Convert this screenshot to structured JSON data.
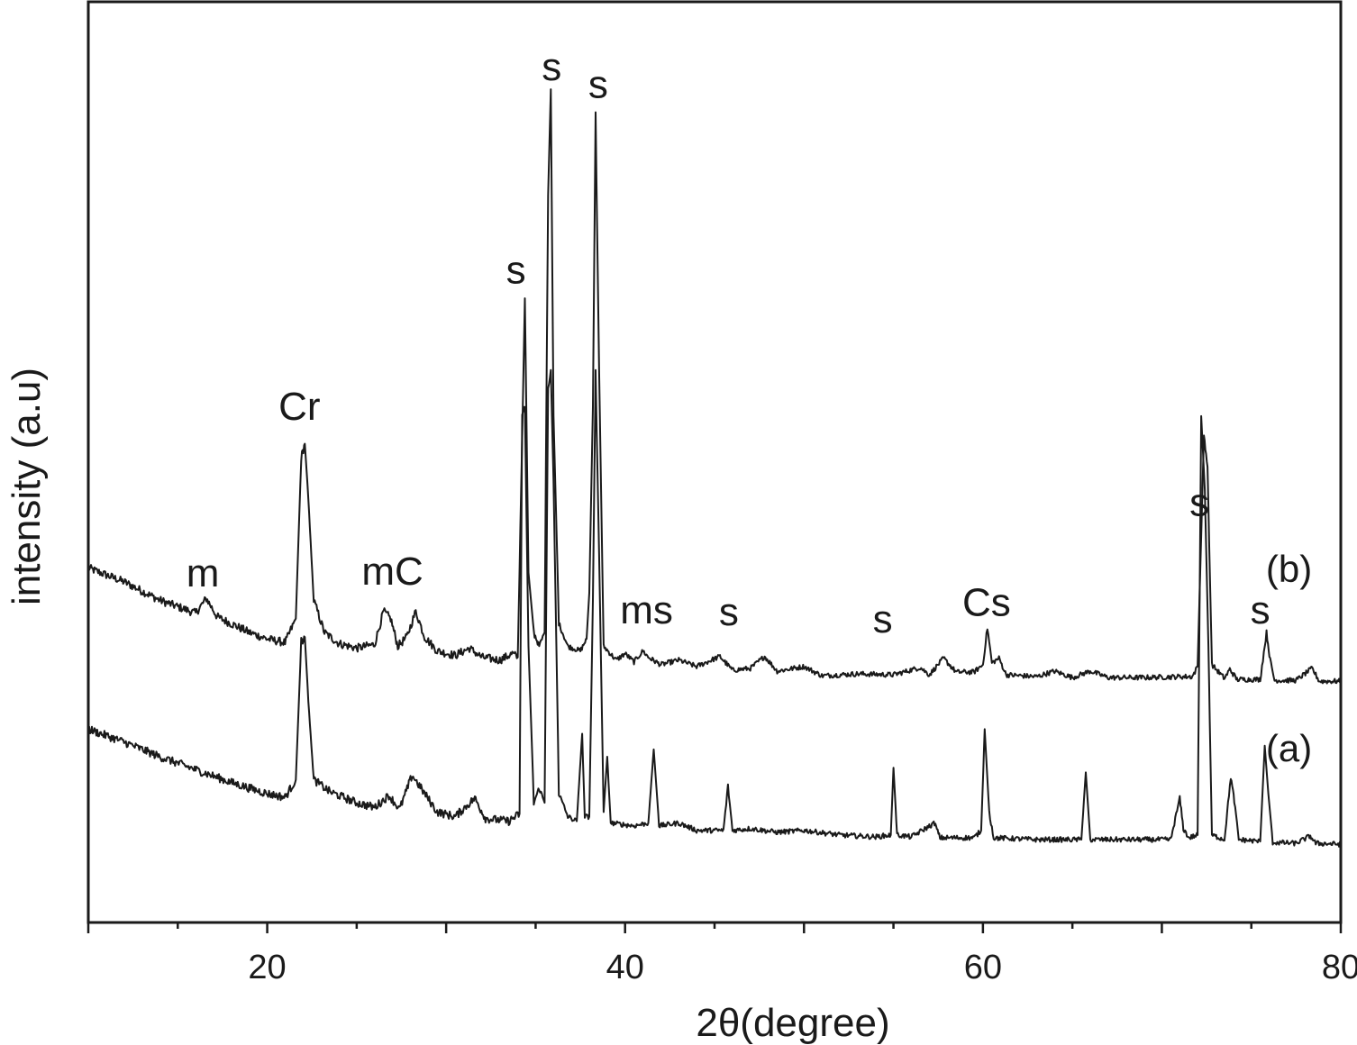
{
  "chart_data": {
    "type": "line",
    "title": "",
    "xlabel": "2θ(degree)",
    "ylabel": "intensity (a.u)",
    "xlim": [
      10,
      80
    ],
    "ylim": [
      0,
      100
    ],
    "x_ticks": [
      20,
      40,
      60,
      80
    ],
    "y_ticks_shown": false,
    "grid": false,
    "legend": "none",
    "line_color": "#1a1a1a",
    "series": [
      {
        "name": "(b)",
        "label_pos": [
          78.4,
          37
        ],
        "points": [
          [
            10.0,
            38.5
          ],
          [
            12.0,
            37.0
          ],
          [
            14.0,
            35.0
          ],
          [
            16.0,
            33.6
          ],
          [
            16.6,
            35.2
          ],
          [
            17.2,
            33.2
          ],
          [
            19.0,
            31.5
          ],
          [
            20.0,
            30.8
          ],
          [
            21.0,
            30.4
          ],
          [
            21.6,
            33.0
          ],
          [
            21.9,
            50.5
          ],
          [
            22.1,
            52.0
          ],
          [
            22.3,
            46.0
          ],
          [
            22.6,
            35.0
          ],
          [
            23.2,
            31.5
          ],
          [
            24.0,
            30.3
          ],
          [
            25.0,
            29.8
          ],
          [
            26.0,
            30.2
          ],
          [
            26.5,
            33.8
          ],
          [
            26.9,
            33.0
          ],
          [
            27.3,
            30.0
          ],
          [
            27.8,
            31.0
          ],
          [
            28.3,
            33.8
          ],
          [
            28.8,
            31.0
          ],
          [
            29.5,
            29.5
          ],
          [
            30.5,
            29.0
          ],
          [
            31.3,
            29.8
          ],
          [
            32.0,
            28.8
          ],
          [
            33.0,
            28.5
          ],
          [
            33.7,
            29.2
          ],
          [
            34.0,
            28.8
          ],
          [
            34.25,
            52.5
          ],
          [
            34.4,
            67.8
          ],
          [
            34.6,
            38.0
          ],
          [
            34.9,
            31.5
          ],
          [
            35.2,
            30.0
          ],
          [
            35.5,
            31.5
          ],
          [
            35.7,
            79.0
          ],
          [
            35.85,
            90.5
          ],
          [
            36.0,
            55.0
          ],
          [
            36.3,
            32.5
          ],
          [
            36.8,
            30.0
          ],
          [
            37.5,
            29.5
          ],
          [
            37.85,
            30.8
          ],
          [
            38.0,
            35.8
          ],
          [
            38.2,
            56.0
          ],
          [
            38.35,
            88.0
          ],
          [
            38.55,
            60.0
          ],
          [
            38.8,
            30.0
          ],
          [
            39.5,
            28.5
          ],
          [
            40.0,
            29.2
          ],
          [
            40.5,
            28.3
          ],
          [
            41.0,
            29.5
          ],
          [
            41.3,
            28.8
          ],
          [
            42.0,
            28.0
          ],
          [
            43.0,
            28.5
          ],
          [
            44.0,
            27.8
          ],
          [
            45.3,
            28.9
          ],
          [
            46.0,
            27.4
          ],
          [
            47.0,
            27.6
          ],
          [
            47.8,
            28.9
          ],
          [
            48.5,
            27.3
          ],
          [
            50.0,
            27.8
          ],
          [
            51.0,
            26.8
          ],
          [
            53.0,
            27.0
          ],
          [
            55.0,
            26.9
          ],
          [
            56.5,
            27.7
          ],
          [
            57.0,
            26.9
          ],
          [
            57.8,
            28.7
          ],
          [
            58.5,
            27.2
          ],
          [
            59.5,
            27.2
          ],
          [
            60.0,
            28.0
          ],
          [
            60.25,
            32.0
          ],
          [
            60.5,
            28.2
          ],
          [
            60.9,
            28.7
          ],
          [
            61.3,
            26.9
          ],
          [
            63.0,
            26.7
          ],
          [
            64.0,
            27.3
          ],
          [
            65.0,
            26.6
          ],
          [
            66.0,
            27.3
          ],
          [
            67.0,
            26.6
          ],
          [
            69.0,
            26.6
          ],
          [
            71.0,
            26.7
          ],
          [
            71.7,
            26.7
          ],
          [
            72.0,
            27.8
          ],
          [
            72.2,
            42.0
          ],
          [
            72.35,
            53.0
          ],
          [
            72.55,
            49.5
          ],
          [
            72.8,
            28.0
          ],
          [
            73.5,
            26.5
          ],
          [
            73.8,
            27.5
          ],
          [
            74.2,
            26.4
          ],
          [
            75.5,
            26.4
          ],
          [
            75.85,
            31.5
          ],
          [
            76.05,
            28.5
          ],
          [
            76.3,
            26.3
          ],
          [
            77.5,
            26.3
          ],
          [
            78.4,
            27.6
          ],
          [
            78.8,
            26.2
          ],
          [
            80.0,
            26.2
          ]
        ]
      },
      {
        "name": "(a)",
        "label_pos": [
          78.4,
          17.5
        ],
        "points": [
          [
            10.0,
            21.0
          ],
          [
            12.0,
            19.6
          ],
          [
            14.0,
            18.0
          ],
          [
            16.0,
            16.6
          ],
          [
            18.0,
            15.2
          ],
          [
            20.0,
            14.0
          ],
          [
            21.0,
            13.6
          ],
          [
            21.6,
            15.5
          ],
          [
            21.9,
            30.5
          ],
          [
            22.1,
            31.0
          ],
          [
            22.3,
            24.0
          ],
          [
            22.6,
            15.5
          ],
          [
            23.5,
            14.2
          ],
          [
            25.0,
            13.0
          ],
          [
            26.0,
            12.5
          ],
          [
            26.8,
            13.8
          ],
          [
            27.4,
            12.3
          ],
          [
            28.1,
            16.0
          ],
          [
            28.8,
            14.0
          ],
          [
            29.5,
            12.0
          ],
          [
            30.5,
            11.5
          ],
          [
            31.6,
            13.5
          ],
          [
            32.2,
            11.3
          ],
          [
            33.5,
            11.0
          ],
          [
            34.1,
            11.8
          ],
          [
            34.25,
            55.0
          ],
          [
            34.4,
            56.0
          ],
          [
            34.6,
            30.0
          ],
          [
            34.9,
            13.0
          ],
          [
            35.2,
            14.6
          ],
          [
            35.5,
            13.0
          ],
          [
            35.7,
            58.0
          ],
          [
            35.85,
            60.0
          ],
          [
            36.0,
            48.0
          ],
          [
            36.3,
            14.0
          ],
          [
            36.8,
            11.5
          ],
          [
            37.3,
            11.0
          ],
          [
            37.6,
            20.5
          ],
          [
            37.75,
            11.5
          ],
          [
            38.0,
            11.5
          ],
          [
            38.2,
            35.0
          ],
          [
            38.35,
            60.0
          ],
          [
            38.55,
            40.0
          ],
          [
            38.8,
            12.0
          ],
          [
            39.0,
            18.0
          ],
          [
            39.2,
            10.8
          ],
          [
            40.5,
            10.5
          ],
          [
            41.3,
            10.8
          ],
          [
            41.6,
            18.8
          ],
          [
            41.9,
            10.5
          ],
          [
            43.0,
            10.8
          ],
          [
            44.0,
            10.0
          ],
          [
            45.5,
            10.0
          ],
          [
            45.75,
            14.8
          ],
          [
            46.0,
            10.0
          ],
          [
            47.0,
            10.2
          ],
          [
            48.5,
            9.8
          ],
          [
            50.0,
            10.0
          ],
          [
            52.0,
            9.5
          ],
          [
            54.0,
            9.3
          ],
          [
            54.85,
            9.5
          ],
          [
            55.0,
            16.8
          ],
          [
            55.2,
            9.5
          ],
          [
            56.0,
            9.3
          ],
          [
            57.3,
            10.8
          ],
          [
            57.6,
            9.2
          ],
          [
            59.5,
            9.2
          ],
          [
            59.9,
            10.0
          ],
          [
            60.1,
            21.0
          ],
          [
            60.35,
            12.0
          ],
          [
            60.6,
            9.2
          ],
          [
            63.0,
            9.0
          ],
          [
            65.5,
            9.0
          ],
          [
            65.75,
            16.3
          ],
          [
            66.0,
            9.0
          ],
          [
            68.0,
            9.0
          ],
          [
            70.5,
            9.0
          ],
          [
            71.0,
            13.5
          ],
          [
            71.2,
            10.2
          ],
          [
            71.5,
            9.2
          ],
          [
            72.0,
            9.5
          ],
          [
            72.2,
            55.0
          ],
          [
            72.4,
            47.0
          ],
          [
            72.6,
            30.0
          ],
          [
            72.8,
            9.5
          ],
          [
            73.5,
            9.0
          ],
          [
            73.85,
            15.8
          ],
          [
            74.05,
            13.2
          ],
          [
            74.3,
            9.0
          ],
          [
            75.5,
            8.8
          ],
          [
            75.75,
            19.2
          ],
          [
            75.95,
            14.0
          ],
          [
            76.2,
            8.7
          ],
          [
            77.5,
            8.6
          ],
          [
            78.3,
            9.4
          ],
          [
            78.6,
            8.6
          ],
          [
            80.0,
            8.5
          ]
        ]
      }
    ],
    "annotations": [
      {
        "text": "m",
        "x": 16.4,
        "y": 36.5
      },
      {
        "text": "Cr",
        "x": 21.8,
        "y": 54.6
      },
      {
        "text": "mC",
        "x": 27.0,
        "y": 36.7
      },
      {
        "text": "s",
        "x": 33.9,
        "y": 69.4
      },
      {
        "text": "s",
        "x": 35.9,
        "y": 91.5
      },
      {
        "text": "s",
        "x": 38.5,
        "y": 89.6
      },
      {
        "text": "ms",
        "x": 41.2,
        "y": 32.5
      },
      {
        "text": "s",
        "x": 45.8,
        "y": 32.3
      },
      {
        "text": "s",
        "x": 54.4,
        "y": 31.5
      },
      {
        "text": "Cs",
        "x": 60.2,
        "y": 33.3
      },
      {
        "text": "s",
        "x": 72.1,
        "y": 44.2
      },
      {
        "text": "s",
        "x": 75.5,
        "y": 32.5
      }
    ]
  }
}
